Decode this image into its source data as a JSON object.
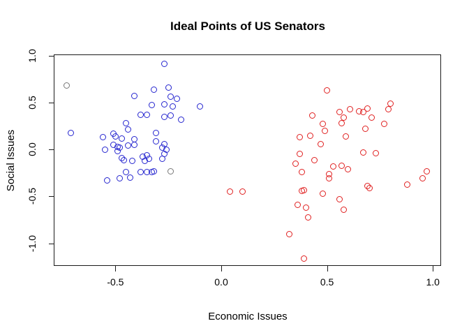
{
  "title": "Ideal Points of US Senators",
  "chart_data": {
    "type": "scatter",
    "title": "Ideal Points of US Senators",
    "xlabel": "Economic Issues",
    "ylabel": "Social Issues",
    "xlim": [
      -0.79,
      1.04
    ],
    "ylim": [
      -1.24,
      1.01
    ],
    "grid": false,
    "legend_position": "none",
    "marker": "open-circle",
    "x_ticks": {
      "values": [
        -0.5,
        0.0,
        0.5,
        1.0
      ],
      "labels": [
        "-0.5",
        "0.0",
        "0.5",
        "1.0"
      ]
    },
    "y_ticks": {
      "values": [
        1.0,
        0.5,
        0.0,
        -0.5,
        -1.0
      ],
      "labels": [
        "1.0",
        "0.5",
        "0.0",
        "-0.5",
        "-1.0"
      ]
    },
    "series": [
      {
        "name": "blue-cluster",
        "color": "#2525CF",
        "points": [
          [
            -0.27,
            0.91
          ],
          [
            -0.32,
            0.64
          ],
          [
            -0.25,
            0.66
          ],
          [
            -0.41,
            0.57
          ],
          [
            -0.24,
            0.56
          ],
          [
            -0.21,
            0.54
          ],
          [
            -0.33,
            0.47
          ],
          [
            -0.27,
            0.48
          ],
          [
            -0.23,
            0.46
          ],
          [
            -0.1,
            0.46
          ],
          [
            -0.38,
            0.37
          ],
          [
            -0.35,
            0.37
          ],
          [
            -0.27,
            0.35
          ],
          [
            -0.24,
            0.36
          ],
          [
            -0.19,
            0.32
          ],
          [
            -0.45,
            0.28
          ],
          [
            -0.44,
            0.21
          ],
          [
            -0.71,
            0.18
          ],
          [
            -0.56,
            0.13
          ],
          [
            -0.51,
            0.17
          ],
          [
            -0.5,
            0.14
          ],
          [
            -0.47,
            0.12
          ],
          [
            -0.41,
            0.11
          ],
          [
            -0.31,
            0.18
          ],
          [
            -0.55,
            0.0
          ],
          [
            -0.51,
            0.05
          ],
          [
            -0.49,
            0.03
          ],
          [
            -0.48,
            0.02
          ],
          [
            -0.49,
            -0.02
          ],
          [
            -0.44,
            0.04
          ],
          [
            -0.41,
            0.05
          ],
          [
            -0.31,
            0.09
          ],
          [
            -0.27,
            0.06
          ],
          [
            -0.28,
            0.02
          ],
          [
            -0.26,
            0.0
          ],
          [
            -0.27,
            -0.05
          ],
          [
            -0.28,
            -0.1
          ],
          [
            -0.47,
            -0.09
          ],
          [
            -0.46,
            -0.11
          ],
          [
            -0.42,
            -0.12
          ],
          [
            -0.37,
            -0.08
          ],
          [
            -0.35,
            -0.06
          ],
          [
            -0.36,
            -0.12
          ],
          [
            -0.34,
            -0.1
          ],
          [
            -0.54,
            -0.33
          ],
          [
            -0.48,
            -0.31
          ],
          [
            -0.45,
            -0.24
          ],
          [
            -0.43,
            -0.3
          ],
          [
            -0.38,
            -0.24
          ],
          [
            -0.35,
            -0.24
          ],
          [
            -0.33,
            -0.24
          ],
          [
            -0.32,
            -0.23
          ]
        ]
      },
      {
        "name": "red-cluster",
        "color": "#E02020",
        "points": [
          [
            0.5,
            0.63
          ],
          [
            0.61,
            0.43
          ],
          [
            0.65,
            0.41
          ],
          [
            0.67,
            0.4
          ],
          [
            0.69,
            0.44
          ],
          [
            0.8,
            0.49
          ],
          [
            0.79,
            0.43
          ],
          [
            0.43,
            0.36
          ],
          [
            0.56,
            0.4
          ],
          [
            0.58,
            0.34
          ],
          [
            0.71,
            0.34
          ],
          [
            0.57,
            0.28
          ],
          [
            0.48,
            0.27
          ],
          [
            0.77,
            0.27
          ],
          [
            0.68,
            0.22
          ],
          [
            0.37,
            0.13
          ],
          [
            0.42,
            0.15
          ],
          [
            0.49,
            0.2
          ],
          [
            0.59,
            0.14
          ],
          [
            0.47,
            0.06
          ],
          [
            0.67,
            -0.03
          ],
          [
            0.73,
            -0.04
          ],
          [
            0.37,
            -0.05
          ],
          [
            0.44,
            -0.11
          ],
          [
            0.35,
            -0.15
          ],
          [
            0.53,
            -0.18
          ],
          [
            0.57,
            -0.17
          ],
          [
            0.6,
            -0.21
          ],
          [
            0.38,
            -0.24
          ],
          [
            0.51,
            -0.26
          ],
          [
            0.51,
            -0.31
          ],
          [
            0.97,
            -0.23
          ],
          [
            0.95,
            -0.31
          ],
          [
            0.88,
            -0.37
          ],
          [
            0.04,
            -0.45
          ],
          [
            0.1,
            -0.45
          ],
          [
            0.38,
            -0.44
          ],
          [
            0.39,
            -0.43
          ],
          [
            0.48,
            -0.47
          ],
          [
            0.69,
            -0.39
          ],
          [
            0.7,
            -0.41
          ],
          [
            0.36,
            -0.59
          ],
          [
            0.4,
            -0.62
          ],
          [
            0.41,
            -0.72
          ],
          [
            0.56,
            -0.53
          ],
          [
            0.58,
            -0.64
          ],
          [
            0.32,
            -0.9
          ],
          [
            0.39,
            -1.16
          ]
        ]
      },
      {
        "name": "gray-points",
        "color": "#777777",
        "points": [
          [
            -0.73,
            0.68
          ],
          [
            -0.24,
            -0.23
          ]
        ]
      }
    ]
  }
}
